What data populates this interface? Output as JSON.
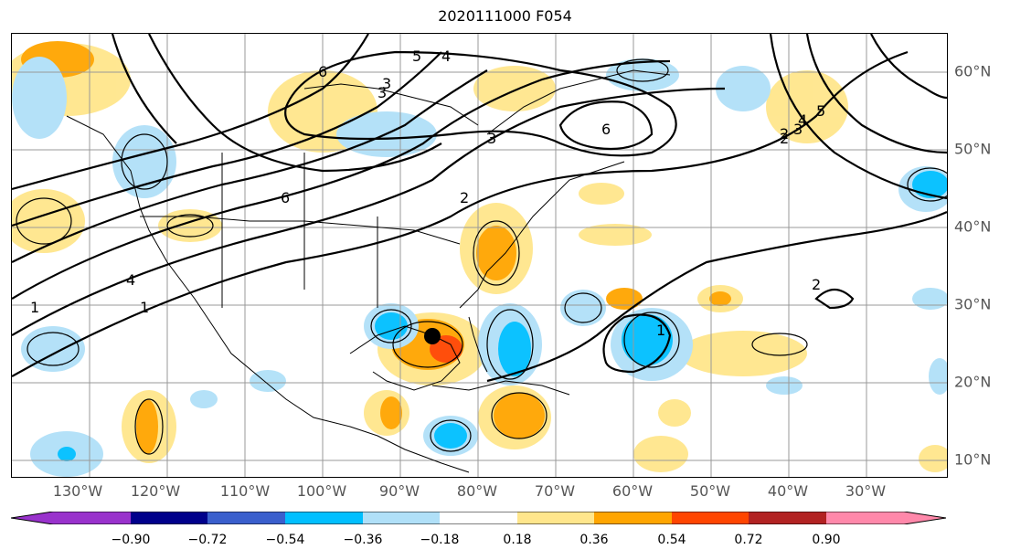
{
  "title": "2020111000 F054",
  "lon_labels": [
    "130°W",
    "120°W",
    "110°W",
    "100°W",
    "90°W",
    "80°W",
    "70°W",
    "60°W",
    "50°W",
    "40°W",
    "30°W"
  ],
  "lat_labels": [
    "60°N",
    "50°N",
    "40°N",
    "30°N",
    "20°N",
    "10°N"
  ],
  "contour_labels": [
    "6",
    "5",
    "4",
    "3",
    "2",
    "1",
    "1",
    "4",
    "6",
    "3",
    "2",
    "6",
    "5",
    "4",
    "3",
    "2",
    "1",
    "2",
    "3"
  ],
  "colorbar": {
    "ticks": [
      "−0.90",
      "−0.72",
      "−0.54",
      "−0.36",
      "−0.18",
      "0.18",
      "0.36",
      "0.54",
      "0.72",
      "0.90"
    ],
    "colors": [
      "#9932cc",
      "#00008b",
      "#3a5fcd",
      "#00bfff",
      "#b0e0f8",
      "#ffffff",
      "#ffe68c",
      "#ffa500",
      "#ff4500",
      "#b22222",
      "#ff88aa"
    ]
  },
  "marker": "storm-center-dot"
}
